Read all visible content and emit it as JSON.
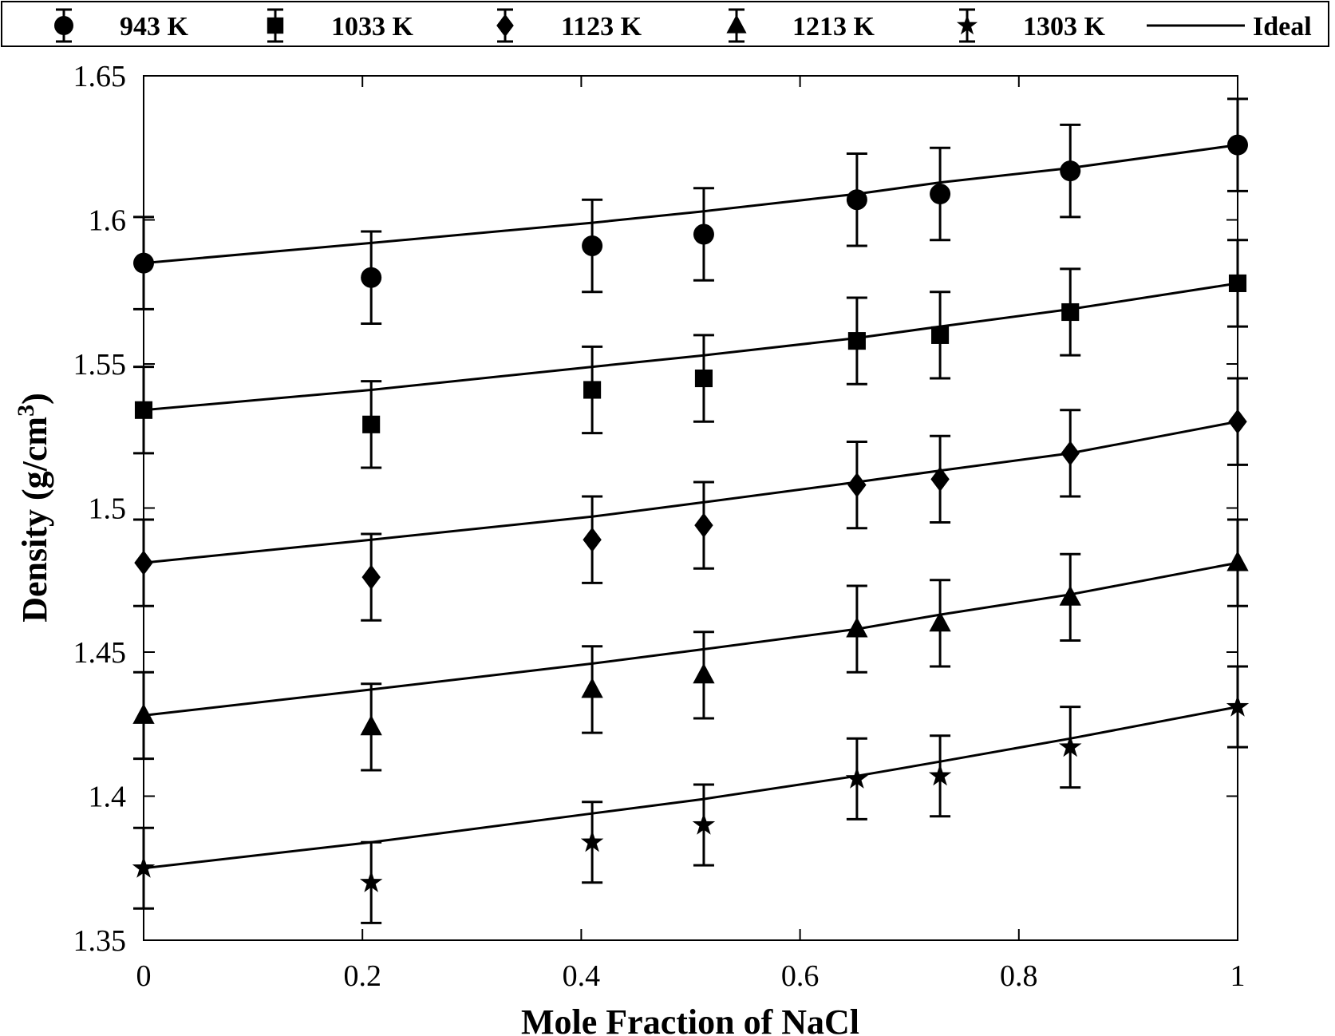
{
  "chart_data": {
    "type": "scatter",
    "xlabel": "Mole Fraction of NaCl",
    "ylabel_main": "Density (g/cm",
    "ylabel_sup": "3",
    "ylabel_close": ")",
    "xlim": [
      0,
      1
    ],
    "ylim": [
      1.35,
      1.65
    ],
    "xticks": [
      0,
      0.2,
      0.4,
      0.6,
      0.8,
      1
    ],
    "xtick_labels": [
      "0",
      "0.2",
      "0.4",
      "0.6",
      "0.8",
      "1"
    ],
    "yticks": [
      1.35,
      1.4,
      1.45,
      1.5,
      1.55,
      1.6,
      1.65
    ],
    "ytick_labels": [
      "1.35",
      "1.4",
      "1.45",
      "1.5",
      "1.55",
      "1.6",
      "1.65"
    ],
    "grid": false,
    "legend_position": "top",
    "ideal_label": "Ideal",
    "x": [
      0,
      0.208,
      0.41,
      0.512,
      0.652,
      0.728,
      0.847,
      1.0
    ],
    "series": [
      {
        "name": "943 K",
        "marker": "circle",
        "error": 0.016,
        "values": [
          1.585,
          1.58,
          1.591,
          1.595,
          1.607,
          1.609,
          1.617,
          1.626
        ],
        "ideal": [
          1.585,
          1.592,
          1.599,
          1.603,
          1.609,
          1.613,
          1.618,
          1.626
        ]
      },
      {
        "name": "1033 K",
        "marker": "square",
        "error": 0.015,
        "values": [
          1.534,
          1.529,
          1.541,
          1.545,
          1.558,
          1.56,
          1.568,
          1.578
        ],
        "ideal": [
          1.534,
          1.541,
          1.549,
          1.553,
          1.559,
          1.563,
          1.569,
          1.578
        ]
      },
      {
        "name": "1123 K",
        "marker": "diamond",
        "error": 0.015,
        "values": [
          1.481,
          1.476,
          1.489,
          1.494,
          1.508,
          1.51,
          1.519,
          1.53
        ],
        "ideal": [
          1.481,
          1.489,
          1.497,
          1.502,
          1.509,
          1.513,
          1.519,
          1.53
        ]
      },
      {
        "name": "1213 K",
        "marker": "triangle",
        "error": 0.015,
        "values": [
          1.428,
          1.424,
          1.437,
          1.442,
          1.458,
          1.46,
          1.469,
          1.481
        ],
        "ideal": [
          1.428,
          1.437,
          1.446,
          1.451,
          1.458,
          1.463,
          1.47,
          1.481
        ]
      },
      {
        "name": "1303 K",
        "marker": "star",
        "error": 0.014,
        "values": [
          1.375,
          1.37,
          1.384,
          1.39,
          1.406,
          1.407,
          1.417,
          1.431
        ],
        "ideal": [
          1.375,
          1.384,
          1.394,
          1.399,
          1.407,
          1.412,
          1.42,
          1.431
        ]
      }
    ]
  }
}
